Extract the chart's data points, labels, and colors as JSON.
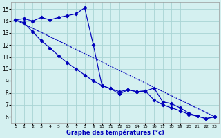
{
  "bg_color": "#d4f0f0",
  "grid_color": "#a8d4d4",
  "line_color": "#0000bb",
  "xlabel": "Graphe des températures (°c)",
  "ylim": [
    5.5,
    15.6
  ],
  "xlim": [
    -0.5,
    23.5
  ],
  "yticks": [
    6,
    7,
    8,
    9,
    10,
    11,
    12,
    13,
    14,
    15
  ],
  "xticks": [
    0,
    1,
    2,
    3,
    4,
    5,
    6,
    7,
    8,
    9,
    10,
    11,
    12,
    13,
    14,
    15,
    16,
    17,
    18,
    19,
    20,
    21,
    22,
    23
  ],
  "curve1_x": [
    0,
    1,
    2,
    3,
    4,
    5,
    6,
    7,
    8,
    9,
    10,
    11,
    12,
    13,
    14,
    15,
    16,
    17,
    18,
    19,
    20,
    21,
    22,
    23
  ],
  "curve1_y": [
    14.1,
    14.2,
    14.0,
    14.3,
    14.1,
    14.3,
    14.45,
    14.6,
    15.1,
    12.0,
    8.6,
    8.35,
    7.9,
    8.25,
    8.1,
    8.15,
    8.4,
    7.25,
    7.1,
    6.75,
    6.3,
    6.05,
    5.85,
    6.0
  ],
  "curve2_x": [
    0,
    1,
    2,
    3,
    4,
    5,
    6,
    7,
    8,
    9,
    10,
    11,
    12,
    13,
    14,
    15,
    16,
    17,
    18,
    19,
    20,
    21,
    22,
    23
  ],
  "curve2_y": [
    14.1,
    13.85,
    13.1,
    12.35,
    11.75,
    11.1,
    10.5,
    10.0,
    9.5,
    9.0,
    8.6,
    8.35,
    8.1,
    8.25,
    8.1,
    8.15,
    7.4,
    7.0,
    6.75,
    6.5,
    6.2,
    6.05,
    5.85,
    6.0
  ],
  "line3_x": [
    0,
    23
  ],
  "line3_y": [
    14.1,
    6.0
  ]
}
